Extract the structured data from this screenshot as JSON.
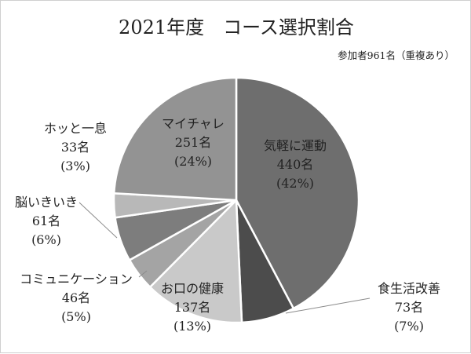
{
  "chart_data": {
    "type": "pie",
    "title": "2021年度　コース選択割合",
    "subtitle": "参加者961名（重複あり）",
    "slices": [
      {
        "name": "気軽に運動",
        "count": "440名",
        "percent": "(42%)",
        "value": 440,
        "color": "#6e6e6e"
      },
      {
        "name": "食生活改善",
        "count": "73名",
        "percent": "(7%)",
        "value": 73,
        "color": "#4c4c4c"
      },
      {
        "name": "お口の健康",
        "count": "137名",
        "percent": "(13%)",
        "value": 137,
        "color": "#c9c9c9"
      },
      {
        "name": "コミュニケーション",
        "count": "46名",
        "percent": "(5%)",
        "value": 46,
        "color": "#a4a4a4"
      },
      {
        "name": "脳いきいき",
        "count": "61名",
        "percent": "(6%)",
        "value": 61,
        "color": "#7d7d7d"
      },
      {
        "name": "ホッと一息",
        "count": "33名",
        "percent": "(3%)",
        "value": 33,
        "color": "#b8b8b8"
      },
      {
        "name": "マイチャレ",
        "count": "251名",
        "percent": "(24%)",
        "value": 251,
        "color": "#939393"
      }
    ]
  }
}
